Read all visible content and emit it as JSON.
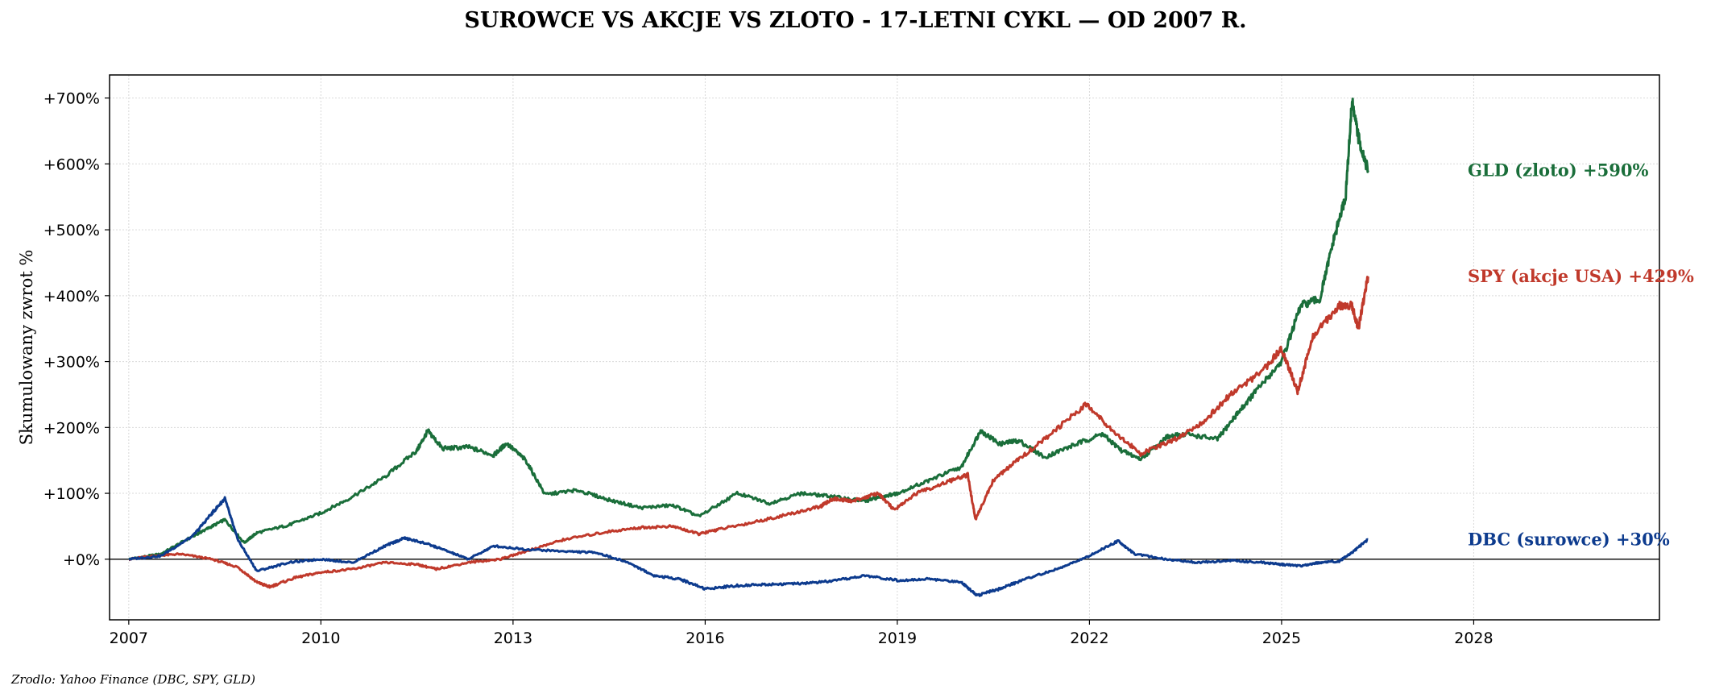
{
  "chart_data": {
    "type": "line",
    "title": "SUROWCE VS AKCJE VS ZLOTO - 17-LETNI CYKL — OD 2007 R.",
    "xlabel": "",
    "ylabel": "Skumulowany zwrot %",
    "xlim": [
      2006.7,
      2030.9
    ],
    "ylim": [
      -92,
      735
    ],
    "x_ticks": [
      2007,
      2010,
      2013,
      2016,
      2019,
      2022,
      2025,
      2028
    ],
    "y_ticks": [
      0,
      100,
      200,
      300,
      400,
      500,
      600,
      700
    ],
    "y_tick_labels": [
      "+0%",
      "+100%",
      "+200%",
      "+300%",
      "+400%",
      "+500%",
      "+600%",
      "+700%"
    ],
    "grid": true,
    "zero_line": true,
    "series": [
      {
        "name": "GLD (zloto)",
        "end_label": "GLD (zloto)  +590%",
        "color": "#1a6e3a",
        "x": [
          2007.0,
          2007.5,
          2008.0,
          2008.2,
          2008.5,
          2008.8,
          2009.0,
          2009.5,
          2010.0,
          2010.5,
          2011.0,
          2011.5,
          2011.67,
          2011.9,
          2012.3,
          2012.7,
          2012.9,
          2013.2,
          2013.5,
          2014.0,
          2014.5,
          2015.0,
          2015.5,
          2015.9,
          2016.5,
          2017.0,
          2017.5,
          2018.0,
          2018.5,
          2018.7,
          2019.0,
          2019.5,
          2020.0,
          2020.3,
          2020.6,
          2020.9,
          2021.3,
          2021.8,
          2022.2,
          2022.5,
          2022.8,
          2023.2,
          2023.5,
          2024.0,
          2024.3,
          2024.6,
          2025.0,
          2025.3,
          2025.6,
          2025.8,
          2026.0,
          2026.1,
          2026.2,
          2026.35
        ],
        "y": [
          0,
          8,
          35,
          45,
          60,
          25,
          40,
          52,
          70,
          95,
          125,
          165,
          195,
          168,
          170,
          158,
          176,
          150,
          98,
          105,
          90,
          78,
          82,
          65,
          100,
          85,
          100,
          95,
          88,
          94,
          100,
          120,
          140,
          195,
          175,
          180,
          155,
          175,
          190,
          165,
          152,
          185,
          190,
          182,
          220,
          255,
          300,
          385,
          395,
          480,
          550,
          695,
          640,
          590
        ]
      },
      {
        "name": "SPY (akcje USA)",
        "end_label": "SPY (akcje USA)  +429%",
        "color": "#c0392b",
        "x": [
          2007.0,
          2007.4,
          2007.8,
          2008.3,
          2008.7,
          2009.0,
          2009.2,
          2009.6,
          2010.0,
          2010.5,
          2011.0,
          2011.5,
          2011.8,
          2012.3,
          2012.8,
          2013.3,
          2013.8,
          2014.5,
          2015.0,
          2015.5,
          2015.9,
          2016.2,
          2016.7,
          2017.3,
          2017.8,
          2018.0,
          2018.3,
          2018.7,
          2018.95,
          2019.3,
          2019.8,
          2020.1,
          2020.22,
          2020.5,
          2020.9,
          2021.4,
          2021.95,
          2022.4,
          2022.8,
          2023.3,
          2023.8,
          2024.2,
          2024.7,
          2025.0,
          2025.25,
          2025.5,
          2025.9,
          2026.1,
          2026.2,
          2026.35
        ],
        "y": [
          0,
          5,
          8,
          0,
          -12,
          -35,
          -42,
          -28,
          -20,
          -15,
          -5,
          -8,
          -15,
          -5,
          0,
          15,
          30,
          42,
          48,
          50,
          38,
          45,
          55,
          68,
          80,
          92,
          88,
          100,
          75,
          100,
          118,
          128,
          60,
          120,
          152,
          190,
          236,
          192,
          160,
          180,
          210,
          250,
          285,
          320,
          255,
          340,
          385,
          385,
          350,
          429
        ]
      },
      {
        "name": "DBC (surowce)",
        "end_label": "DBC (surowce)  +30%",
        "color": "#0d3b8e",
        "x": [
          2007.0,
          2007.5,
          2008.0,
          2008.3,
          2008.5,
          2008.7,
          2009.0,
          2009.5,
          2010.0,
          2010.5,
          2011.0,
          2011.3,
          2011.6,
          2011.9,
          2012.3,
          2012.7,
          2013.2,
          2013.8,
          2014.3,
          2014.8,
          2015.2,
          2015.6,
          2016.0,
          2016.5,
          2017.0,
          2017.5,
          2018.0,
          2018.5,
          2019.0,
          2019.5,
          2020.0,
          2020.25,
          2020.6,
          2021.0,
          2021.5,
          2022.0,
          2022.45,
          2022.7,
          2023.2,
          2023.7,
          2024.2,
          2024.7,
          2025.0,
          2025.3,
          2025.6,
          2025.9,
          2026.1,
          2026.35
        ],
        "y": [
          0,
          5,
          35,
          70,
          92,
          30,
          -18,
          -5,
          0,
          -5,
          20,
          32,
          25,
          15,
          0,
          20,
          15,
          12,
          10,
          -5,
          -25,
          -30,
          -45,
          -40,
          -38,
          -37,
          -33,
          -25,
          -32,
          -30,
          -35,
          -55,
          -45,
          -30,
          -15,
          5,
          28,
          8,
          0,
          -5,
          -2,
          -5,
          -8,
          -10,
          -5,
          -3,
          10,
          30
        ]
      }
    ],
    "source": "Zrodlo: Yahoo Finance (DBC, SPY, GLD)"
  }
}
